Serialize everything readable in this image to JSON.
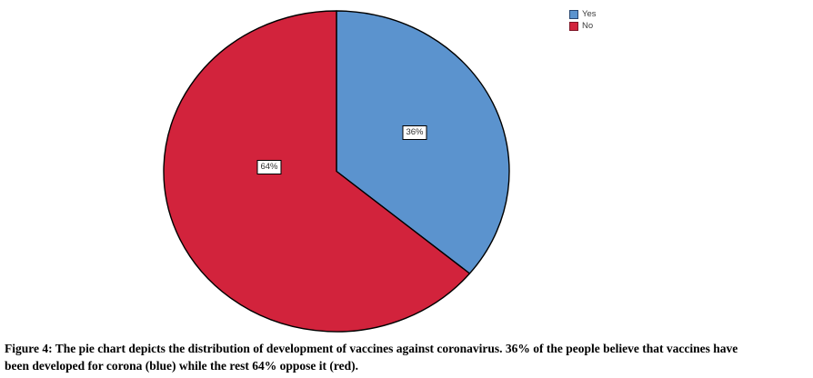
{
  "chart_data": {
    "type": "pie",
    "categories": [
      "Yes",
      "No"
    ],
    "values": [
      36,
      64
    ],
    "labels": [
      "36%",
      "64%"
    ],
    "colors": [
      "#5B93CE",
      "#D2233C"
    ],
    "start_angle_deg": 0,
    "direction": "clockwise",
    "legend_position": "top-right",
    "title": ""
  },
  "legend": {
    "items": [
      {
        "label": "Yes",
        "color": "#5B93CE"
      },
      {
        "label": "No",
        "color": "#D2233C"
      }
    ]
  },
  "figure": {
    "caption_line1": "Figure 4: The pie chart depicts the distribution of development of vaccines against coronavirus. 36% of the people believe that vaccines have",
    "caption_line2": "been developed for corona (blue) while the rest 64% oppose it (red)."
  }
}
